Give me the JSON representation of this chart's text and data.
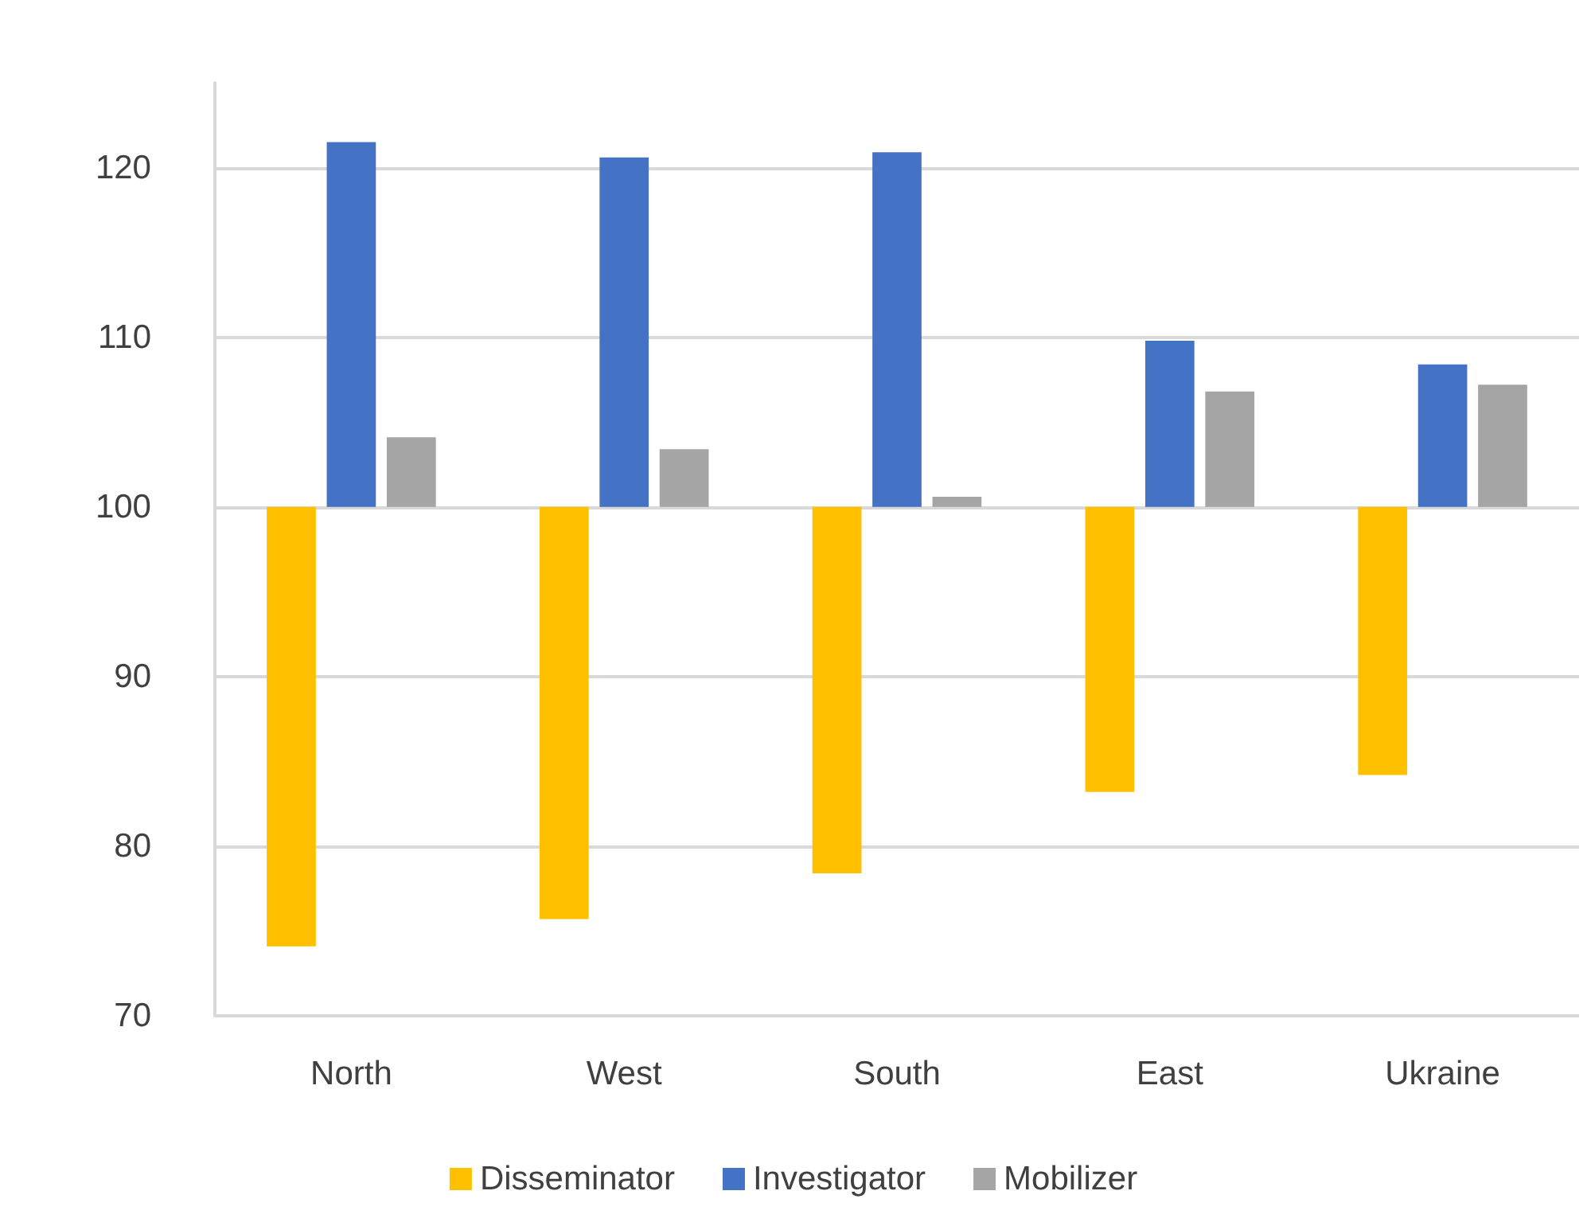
{
  "chart_data": {
    "type": "bar",
    "categories": [
      "North",
      "West",
      "South",
      "East",
      "Ukraine"
    ],
    "series": [
      {
        "name": "Disseminator",
        "color": "#ffc000",
        "base": [
          100,
          100,
          100,
          100,
          100
        ],
        "values": [
          -25.9,
          -24.3,
          -21.6,
          -16.8,
          -15.8
        ]
      },
      {
        "name": "Investigator",
        "color": "#4472c4",
        "base": [
          100,
          100,
          100,
          100,
          100
        ],
        "values": [
          21.5,
          20.6,
          20.9,
          9.8,
          8.4
        ]
      },
      {
        "name": "Mobilizer",
        "color": "#a5a5a5",
        "base": [
          100,
          100,
          100,
          100,
          100
        ],
        "values": [
          4.1,
          3.4,
          0.6,
          6.8,
          7.2
        ]
      }
    ],
    "ylim": [
      70,
      125
    ],
    "yticks": [
      70,
      80,
      90,
      100,
      110,
      120
    ],
    "grid": "y",
    "legend": "bottom"
  }
}
